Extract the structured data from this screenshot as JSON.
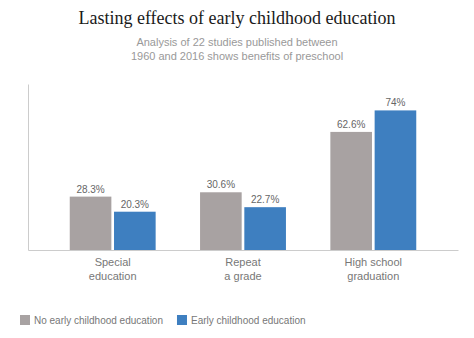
{
  "chart_data": {
    "type": "bar",
    "title": "Lasting effects of early childhood education",
    "subtitle": "Analysis of 22 studies published between\n1960 and 2016 shows benefits of preschool",
    "categories": [
      "Special\neducation",
      "Repeat\na grade",
      "High school\ngraduation"
    ],
    "series": [
      {
        "name": "No early childhood education",
        "color": "#a8a2a2",
        "values": [
          28.3,
          30.6,
          62.6
        ],
        "value_labels": [
          "28.3%",
          "30.6%",
          "62.6%"
        ]
      },
      {
        "name": "Early childhood education",
        "color": "#3e7fc0",
        "values": [
          20.3,
          22.7,
          74.0
        ],
        "value_labels": [
          "20.3%",
          "22.7%",
          "74%"
        ]
      }
    ],
    "ylim": [
      0,
      88
    ],
    "data_labels": true,
    "tick_labels": "x",
    "grid": false,
    "legend": "bottom"
  }
}
